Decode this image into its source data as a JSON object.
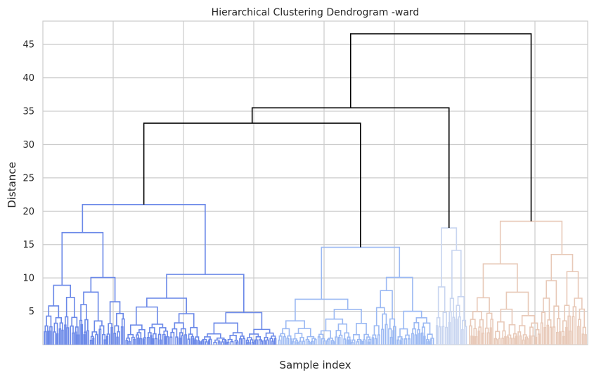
{
  "chart_data": {
    "type": "dendrogram",
    "title": "Hierarchical Clustering Dendrogram -ward",
    "xlabel": "Sample index",
    "ylabel": "Distance",
    "ylim": [
      0,
      48.5
    ],
    "yticks": [
      5,
      10,
      15,
      20,
      25,
      30,
      35,
      40,
      45
    ],
    "grid": true,
    "clusters": [
      {
        "color": "#6a88e8",
        "merge_height": 21.0,
        "sample_share": 0.43
      },
      {
        "color": "#9bb9f3",
        "merge_height": 14.6,
        "sample_share": 0.29
      },
      {
        "color": "#c8d5f0",
        "merge_height": 17.5,
        "sample_share": 0.06
      },
      {
        "color": "#e8c9b8",
        "merge_height": 18.5,
        "sample_share": 0.22
      }
    ],
    "link_color": "#000000",
    "top_merges": [
      {
        "left": "cluster-1",
        "right": "cluster-2",
        "height": 33.2
      },
      {
        "left": "merge-1",
        "right": "cluster-3",
        "height": 35.5
      },
      {
        "left": "merge-2",
        "right": "cluster-4",
        "height": 46.6
      }
    ]
  }
}
